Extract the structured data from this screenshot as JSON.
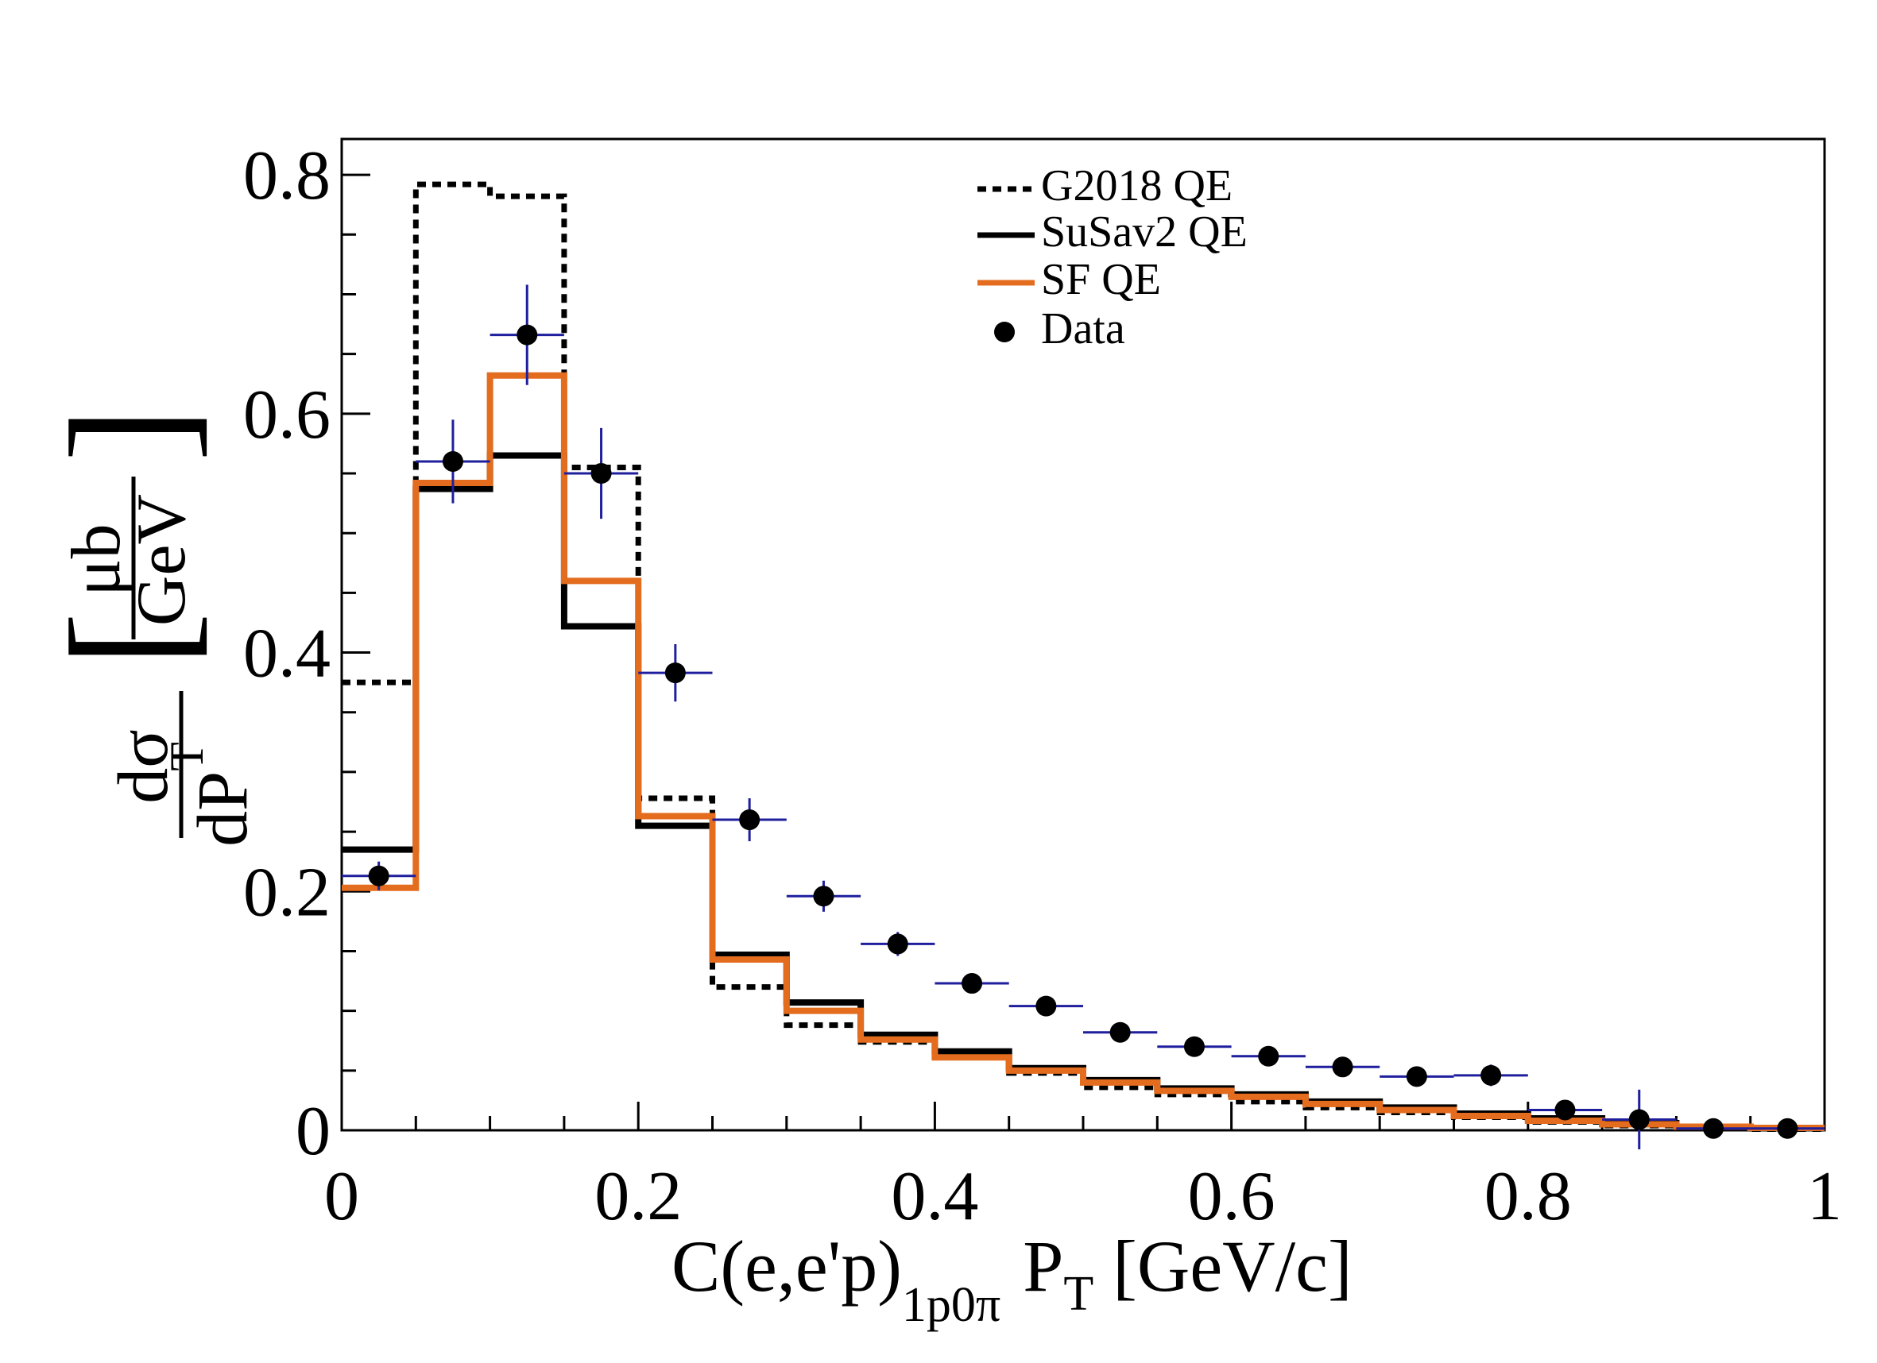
{
  "chart_data": {
    "type": "histogram",
    "xlabel": {
      "main": "C(e,e'p)",
      "subscript": "1p0π",
      "var": "P",
      "var_sub": "T",
      "unit": "[GeV/c]"
    },
    "ylabel": {
      "num": "dσ",
      "den": "dP",
      "den_sub": "T",
      "unit_num": "μb",
      "unit_den": "GeV",
      "lbracket": "[",
      "rbracket": "]"
    },
    "xlim": [
      0,
      1
    ],
    "ylim": [
      0,
      0.83
    ],
    "xticks": [
      0,
      0.2,
      0.4,
      0.6,
      0.8,
      1
    ],
    "xtick_labels": [
      "0",
      "0.2",
      "0.4",
      "0.6",
      "0.8",
      "1"
    ],
    "yticks": [
      0,
      0.2,
      0.4,
      0.6,
      0.8
    ],
    "ytick_labels": [
      "0",
      "0.2",
      "0.4",
      "0.6",
      "0.8"
    ],
    "bin_edges": [
      0,
      0.05,
      0.1,
      0.15,
      0.2,
      0.25,
      0.3,
      0.35,
      0.4,
      0.45,
      0.5,
      0.55,
      0.6,
      0.65,
      0.7,
      0.75,
      0.8,
      0.85,
      0.9,
      0.95,
      1.0
    ],
    "series": [
      {
        "name": "G2018 QE",
        "style": "dotted",
        "color": "#000000",
        "values": [
          0.375,
          0.792,
          0.782,
          0.555,
          0.278,
          0.12,
          0.088,
          0.074,
          0.062,
          0.048,
          0.036,
          0.03,
          0.024,
          0.019,
          0.015,
          0.011,
          0.007,
          0.004,
          0.002,
          0.001
        ]
      },
      {
        "name": "SuSav2 QE",
        "style": "solid",
        "color": "#000000",
        "values": [
          0.235,
          0.537,
          0.565,
          0.422,
          0.255,
          0.147,
          0.107,
          0.08,
          0.066,
          0.052,
          0.042,
          0.035,
          0.03,
          0.024,
          0.019,
          0.014,
          0.01,
          0.006,
          0.003,
          0.002
        ]
      },
      {
        "name": "SF QE",
        "style": "solid",
        "color": "#e46c1e",
        "values": [
          0.203,
          0.542,
          0.632,
          0.46,
          0.263,
          0.143,
          0.1,
          0.076,
          0.061,
          0.05,
          0.04,
          0.033,
          0.028,
          0.022,
          0.017,
          0.012,
          0.008,
          0.005,
          0.003,
          0.002
        ]
      }
    ],
    "data_points": {
      "name": "Data",
      "color": "#000000",
      "err_color": "#1f1f9e",
      "x": [
        0.025,
        0.075,
        0.125,
        0.175,
        0.225,
        0.275,
        0.325,
        0.375,
        0.425,
        0.475,
        0.525,
        0.575,
        0.625,
        0.675,
        0.725,
        0.775,
        0.825,
        0.875,
        0.925,
        0.975
      ],
      "y": [
        0.213,
        0.56,
        0.666,
        0.55,
        0.383,
        0.26,
        0.196,
        0.156,
        0.123,
        0.104,
        0.082,
        0.07,
        0.062,
        0.053,
        0.045,
        0.046,
        0.017,
        0.009,
        0.0015,
        0.0015
      ],
      "yerr": [
        0.012,
        0.035,
        0.042,
        0.038,
        0.024,
        0.018,
        0.013,
        0.01,
        0.007,
        0.006,
        0.005,
        0.005,
        0.005,
        0.005,
        0.006,
        0.009,
        0.007,
        0.025,
        0.001,
        0.001
      ]
    },
    "legend": {
      "position": "top-center",
      "entries": [
        "G2018 QE",
        "SuSav2 QE",
        "SF QE",
        "Data"
      ]
    }
  }
}
